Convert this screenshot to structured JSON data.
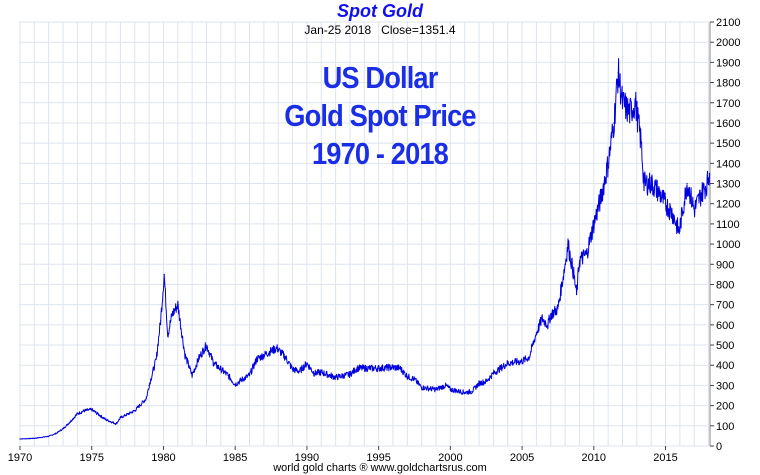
{
  "title": "Spot Gold",
  "subtitle": {
    "date": "Jan-25  2018",
    "close": "Close=1351.4"
  },
  "overlay_text": [
    "US Dollar",
    "Gold Spot Price",
    "1970 - 2018"
  ],
  "credit": "world gold charts ® www.goldchartsrus.com",
  "colors": {
    "line": "#0000dd",
    "title": "#1010ee",
    "overlay": "#1a2ee6",
    "grid": "#dde4ee"
  },
  "chart_data": {
    "type": "line",
    "title": "Spot Gold",
    "xlabel": "",
    "ylabel": "",
    "xlim": [
      1970,
      2018.1
    ],
    "ylim": [
      0,
      2100
    ],
    "grid": true,
    "y_axis_side": "right",
    "x_ticks": [
      "1970",
      "1975",
      "1980",
      "1985",
      "1990",
      "1995",
      "2000",
      "2005",
      "2010",
      "2015"
    ],
    "y_ticks": [
      "0",
      "100",
      "200",
      "300",
      "400",
      "500",
      "600",
      "700",
      "800",
      "900",
      "1000",
      "1100",
      "1200",
      "1300",
      "1400",
      "1500",
      "1600",
      "1700",
      "1800",
      "1900",
      "2000",
      "2100"
    ],
    "series": [
      {
        "x": [
          1970,
          1971,
          1972,
          1972.5,
          1973,
          1973.5,
          1974,
          1974.5,
          1975,
          1975.5,
          1976,
          1976.7,
          1977,
          1978,
          1978.8,
          1979,
          1979.5,
          1979.8,
          1980.05,
          1980.3,
          1980.6,
          1981,
          1981.5,
          1982,
          1982.5,
          1983,
          1983.5,
          1984,
          1984.5,
          1985,
          1985.5,
          1986,
          1986.5,
          1987,
          1987.5,
          1987.9,
          1988.5,
          1989,
          1989.5,
          1990,
          1990.5,
          1991,
          1992,
          1993,
          1993.5,
          1994,
          1995,
          1996,
          1996.5,
          1997,
          1997.5,
          1998,
          1999,
          1999.7,
          2000,
          2001,
          2001.5,
          2002,
          2002.5,
          2003,
          2004,
          2005,
          2005.5,
          2006,
          2006.4,
          2006.8,
          2007,
          2007.5,
          2008,
          2008.2,
          2008.6,
          2008.8,
          2009,
          2009.5,
          2010,
          2010.5,
          2011,
          2011.4,
          2011.7,
          2012,
          2012.5,
          2012.9,
          2013.3,
          2013.5,
          2014,
          2014.5,
          2015,
          2015.5,
          2015.95,
          2016.5,
          2016.9,
          2017,
          2017.5,
          2017.9,
          2018.07
        ],
        "values": [
          35,
          38,
          48,
          62,
          85,
          120,
          160,
          175,
          180,
          155,
          130,
          110,
          140,
          175,
          235,
          300,
          430,
          620,
          850,
          550,
          650,
          700,
          450,
          350,
          440,
          500,
          410,
          380,
          350,
          305,
          330,
          350,
          430,
          450,
          470,
          485,
          440,
          380,
          370,
          410,
          360,
          365,
          340,
          355,
          385,
          385,
          385,
          390,
          385,
          345,
          330,
          290,
          280,
          300,
          280,
          265,
          270,
          310,
          320,
          360,
          410,
          420,
          440,
          560,
          630,
          600,
          650,
          680,
          900,
          1000,
          850,
          750,
          920,
          950,
          1100,
          1230,
          1400,
          1600,
          1850,
          1700,
          1650,
          1700,
          1500,
          1300,
          1300,
          1260,
          1200,
          1150,
          1060,
          1300,
          1200,
          1170,
          1250,
          1300,
          1351
        ]
      }
    ]
  }
}
